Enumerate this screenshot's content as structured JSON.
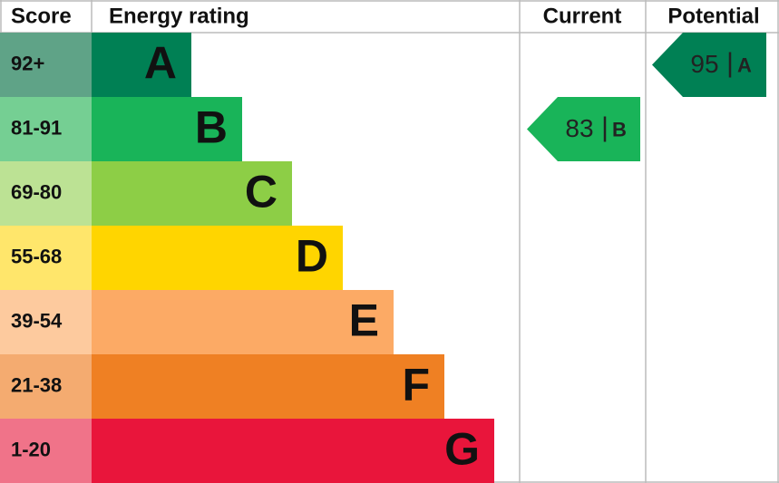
{
  "header": {
    "score": "Score",
    "rating": "Energy rating",
    "current": "Current",
    "potential": "Potential"
  },
  "bands": [
    {
      "score": "92+",
      "letter": "A",
      "color": "#008054",
      "score_color": "#5fa387"
    },
    {
      "score": "81-91",
      "letter": "B",
      "color": "#19b459",
      "score_color": "#75cf93"
    },
    {
      "score": "69-80",
      "letter": "C",
      "color": "#8dce46",
      "score_color": "#bce294"
    },
    {
      "score": "55-68",
      "letter": "D",
      "color": "#ffd500",
      "score_color": "#ffe66b"
    },
    {
      "score": "39-54",
      "letter": "E",
      "color": "#fcaa65",
      "score_color": "#fdca9e"
    },
    {
      "score": "21-38",
      "letter": "F",
      "color": "#ef8023",
      "score_color": "#f4ab70"
    },
    {
      "score": "1-20",
      "letter": "G",
      "color": "#e9153b",
      "score_color": "#f07389"
    }
  ],
  "current": {
    "value": 83,
    "letter": "B"
  },
  "potential": {
    "value": 95,
    "letter": "A"
  }
}
